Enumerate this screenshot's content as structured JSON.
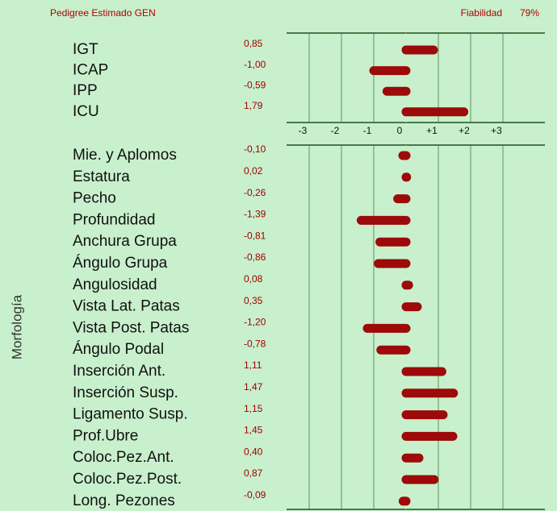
{
  "header": {
    "title": "Pedigree Estimado GEN",
    "reliability_label": "Fiabilidad",
    "reliability": "79%"
  },
  "chart_data": [
    {
      "type": "bar",
      "orientation": "horizontal",
      "color": "#9c0a0a",
      "categories": [
        "IGT",
        "ICAP",
        "IPP",
        "ICU"
      ],
      "values": [
        0.85,
        -1.0,
        -0.59,
        1.79
      ],
      "value_labels": [
        "0,85",
        "-1,00",
        "-0,59",
        "1,79"
      ],
      "xlim": [
        -3.7,
        4.3
      ],
      "xticks": [
        -3,
        -2,
        -1,
        0,
        {
          "value": 1,
          "label": "+1"
        },
        {
          "value": 2,
          "label": "+2"
        },
        {
          "value": 3,
          "label": "+3"
        }
      ],
      "grid": true
    },
    {
      "type": "bar",
      "orientation": "horizontal",
      "color": "#9c0a0a",
      "y_label": "Morfología",
      "categories": [
        "Mie. y Aplomos",
        "Estatura",
        "Pecho",
        "Profundidad",
        "Anchura Grupa",
        "Ángulo Grupa",
        "Angulosidad",
        "Vista Lat. Patas",
        "Vista Post. Patas",
        "Ángulo Podal",
        "Inserción Ant.",
        "Inserción Susp.",
        "Ligamento Susp.",
        "Prof.Ubre",
        "Coloc.Pez.Ant.",
        "Coloc.Pez.Post.",
        "Long. Pezones"
      ],
      "values": [
        -0.1,
        0.02,
        -0.26,
        -1.39,
        -0.81,
        -0.86,
        0.08,
        0.35,
        -1.2,
        -0.78,
        1.11,
        1.47,
        1.15,
        1.45,
        0.4,
        0.87,
        -0.09
      ],
      "value_labels": [
        "-0,10",
        "0,02",
        "-0,26",
        "-1,39",
        "-0,81",
        "-0,86",
        "0,08",
        "0,35",
        "-1,20",
        "-0,78",
        "1,11",
        "1,47",
        "1,15",
        "1,45",
        "0,40",
        "0,87",
        "-0,09"
      ],
      "xlim": [
        -3.7,
        4.3
      ],
      "grid": true
    }
  ]
}
